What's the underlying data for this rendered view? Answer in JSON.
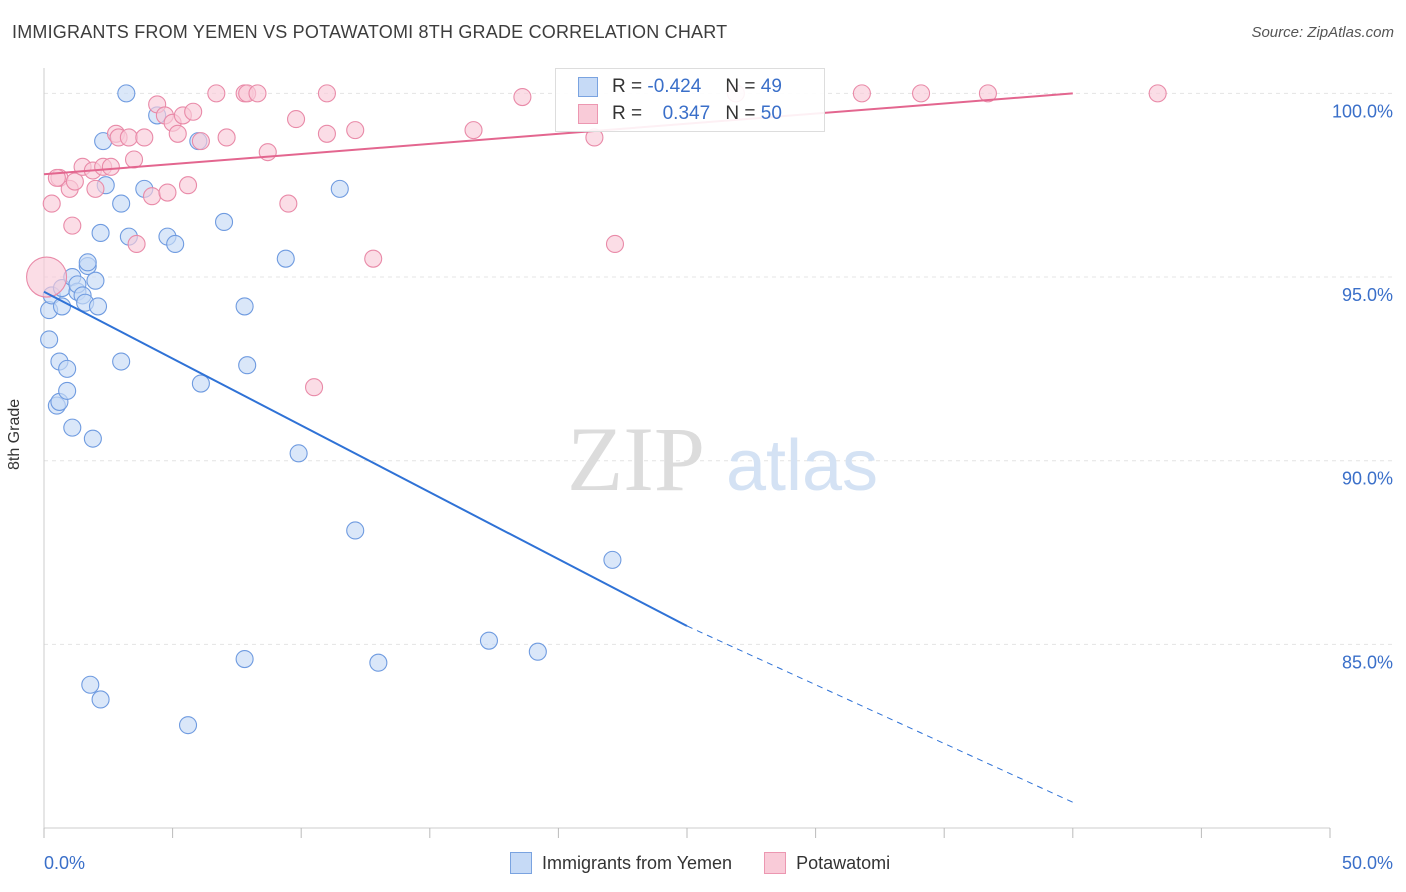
{
  "title": "IMMIGRANTS FROM YEMEN VS POTAWATOMI 8TH GRADE CORRELATION CHART",
  "source": "Source: ZipAtlas.com",
  "watermark": {
    "zip": "ZIP",
    "atlas": "atlas"
  },
  "legend": {
    "r_label": "R =",
    "n_label": "N =",
    "rows": [
      {
        "r": "-0.424",
        "n": "49",
        "color": "#a9c6f0",
        "border": "#6f9be0"
      },
      {
        "r": "0.347",
        "n": "50",
        "color": "#f7b7ca",
        "border": "#e98aa8"
      }
    ]
  },
  "bottom_legend": [
    {
      "label": "Immigrants from Yemen",
      "color": "#c6daf6",
      "border": "#7aa3e0"
    },
    {
      "label": "Potawatomi",
      "color": "#f9cbd8",
      "border": "#ec97b1"
    }
  ],
  "chart_data": {
    "type": "scatter",
    "title": "IMMIGRANTS FROM YEMEN VS POTAWATOMI 8TH GRADE CORRELATION CHART",
    "xlabel": "",
    "ylabel": "8th Grade",
    "xlim": [
      0,
      50
    ],
    "ylim": [
      80,
      100.8
    ],
    "x_tick_labels": [
      "0.0%",
      "50.0%"
    ],
    "y_ticks": [
      85,
      90,
      95,
      100
    ],
    "y_tick_labels": [
      "85.0%",
      "90.0%",
      "95.0%",
      "100.0%"
    ],
    "grid": true,
    "legend_position": "top-center",
    "series": [
      {
        "name": "Immigrants from Yemen",
        "color": "#6f9be0",
        "fill": "#c6daf6",
        "trend": {
          "x": [
            0,
            25
          ],
          "y": [
            94.6,
            85.5
          ],
          "extend_dashed_to": [
            40,
            80.7
          ]
        },
        "points": [
          [
            0.2,
            94.1
          ],
          [
            0.2,
            93.3
          ],
          [
            0.3,
            94.5
          ],
          [
            0.6,
            92.7
          ],
          [
            0.7,
            94.7
          ],
          [
            0.7,
            94.2
          ],
          [
            0.5,
            91.5
          ],
          [
            0.6,
            91.6
          ],
          [
            0.9,
            92.5
          ],
          [
            0.9,
            91.9
          ],
          [
            1.1,
            95.0
          ],
          [
            1.3,
            94.6
          ],
          [
            1.1,
            90.9
          ],
          [
            1.3,
            94.8
          ],
          [
            1.5,
            94.5
          ],
          [
            1.6,
            94.3
          ],
          [
            1.7,
            95.3
          ],
          [
            1.7,
            95.4
          ],
          [
            2.0,
            94.9
          ],
          [
            2.1,
            94.2
          ],
          [
            1.9,
            90.6
          ],
          [
            2.2,
            96.2
          ],
          [
            2.3,
            98.7
          ],
          [
            2.4,
            97.5
          ],
          [
            3.0,
            97.0
          ],
          [
            3.0,
            92.7
          ],
          [
            3.2,
            100.0
          ],
          [
            3.3,
            96.1
          ],
          [
            3.9,
            97.4
          ],
          [
            4.4,
            99.4
          ],
          [
            4.8,
            96.1
          ],
          [
            5.1,
            95.9
          ],
          [
            6.0,
            98.7
          ],
          [
            6.1,
            92.1
          ],
          [
            7.0,
            96.5
          ],
          [
            7.8,
            94.2
          ],
          [
            7.9,
            92.6
          ],
          [
            9.4,
            95.5
          ],
          [
            9.9,
            90.2
          ],
          [
            11.5,
            97.4
          ],
          [
            12.1,
            88.1
          ],
          [
            1.8,
            83.9
          ],
          [
            2.2,
            83.5
          ],
          [
            5.6,
            82.8
          ],
          [
            7.8,
            84.6
          ],
          [
            13.0,
            84.5
          ],
          [
            17.3,
            85.1
          ],
          [
            19.2,
            84.8
          ],
          [
            22.1,
            87.3
          ]
        ]
      },
      {
        "name": "Potawatomi",
        "color": "#e98aa8",
        "fill": "#f9cbd8",
        "trend": {
          "x": [
            0,
            40
          ],
          "y": [
            97.8,
            100.0
          ]
        },
        "points": [
          [
            0.1,
            95.0
          ],
          [
            0.3,
            97.0
          ],
          [
            0.6,
            97.7
          ],
          [
            1.0,
            97.4
          ],
          [
            1.1,
            96.4
          ],
          [
            1.2,
            97.6
          ],
          [
            1.5,
            98.0
          ],
          [
            1.9,
            97.9
          ],
          [
            2.0,
            97.4
          ],
          [
            2.3,
            98.0
          ],
          [
            2.6,
            98.0
          ],
          [
            2.8,
            98.9
          ],
          [
            2.9,
            98.8
          ],
          [
            3.3,
            98.8
          ],
          [
            3.5,
            98.2
          ],
          [
            3.6,
            95.9
          ],
          [
            3.9,
            98.8
          ],
          [
            4.2,
            97.2
          ],
          [
            4.4,
            99.7
          ],
          [
            4.7,
            99.4
          ],
          [
            4.8,
            97.3
          ],
          [
            5.0,
            99.2
          ],
          [
            5.2,
            98.9
          ],
          [
            5.4,
            99.4
          ],
          [
            5.6,
            97.5
          ],
          [
            5.8,
            99.5
          ],
          [
            6.1,
            98.7
          ],
          [
            7.1,
            98.8
          ],
          [
            6.7,
            100.0
          ],
          [
            7.8,
            100.0
          ],
          [
            7.9,
            100.0
          ],
          [
            8.3,
            100.0
          ],
          [
            8.7,
            98.4
          ],
          [
            9.5,
            97.0
          ],
          [
            9.8,
            99.3
          ],
          [
            10.5,
            92.0
          ],
          [
            11.0,
            98.9
          ],
          [
            11.0,
            100.0
          ],
          [
            12.1,
            99.0
          ],
          [
            12.8,
            95.5
          ],
          [
            16.7,
            99.0
          ],
          [
            18.6,
            99.9
          ],
          [
            21.4,
            98.8
          ],
          [
            22.2,
            95.9
          ],
          [
            26.9,
            100.0
          ],
          [
            31.8,
            100.0
          ],
          [
            34.1,
            100.0
          ],
          [
            36.7,
            100.0
          ],
          [
            43.3,
            100.0
          ],
          [
            0.5,
            97.7
          ]
        ]
      }
    ]
  }
}
